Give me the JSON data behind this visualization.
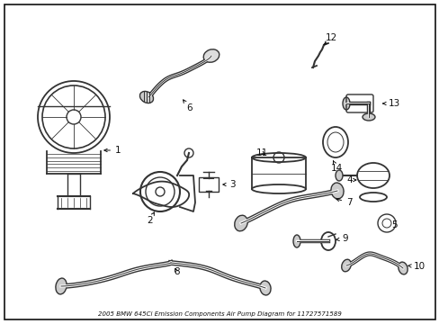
{
  "title": "2005 BMW 645Ci Emission Components Air Pump Diagram for 11727571589",
  "bg": "#ffffff",
  "fg": "#333333",
  "dark": "#111111",
  "fig_w": 4.89,
  "fig_h": 3.6,
  "dpi": 100,
  "lw": 1.0,
  "lw_thick": 2.2,
  "font_label": 7.5,
  "font_title": 5.0
}
